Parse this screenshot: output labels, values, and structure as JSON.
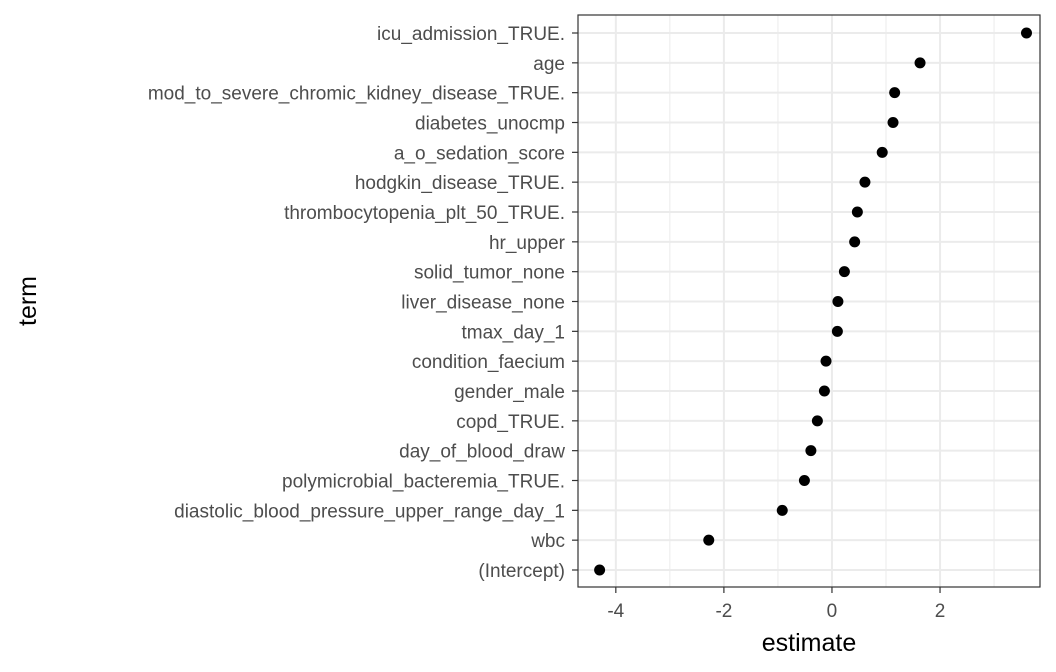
{
  "chart_data": {
    "type": "scatter",
    "xlabel": "estimate",
    "ylabel": "term",
    "xlim": [
      -4.7,
      3.85
    ],
    "x_ticks": [
      -4,
      -2,
      0,
      2
    ],
    "x_tick_labels": [
      "-4",
      "-2",
      "0",
      "2"
    ],
    "grid": true,
    "categories": [
      "(Intercept)",
      "wbc",
      "diastolic_blood_pressure_upper_range_day_1",
      "polymicrobial_bacteremia_TRUE.",
      "day_of_blood_draw",
      "copd_TRUE.",
      "gender_male",
      "condition_faecium",
      "tmax_day_1",
      "liver_disease_none",
      "solid_tumor_none",
      "hr_upper",
      "thrombocytopenia_plt_50_TRUE.",
      "hodgkin_disease_TRUE.",
      "a_o_sedation_score",
      "diabetes_unocmp",
      "mod_to_severe_chromic_kidney_disease_TRUE.",
      "age",
      "icu_admission_TRUE."
    ],
    "values": [
      -4.3,
      -2.28,
      -0.92,
      -0.51,
      -0.39,
      -0.27,
      -0.14,
      -0.11,
      0.1,
      0.11,
      0.23,
      0.42,
      0.47,
      0.61,
      0.93,
      1.13,
      1.16,
      1.63,
      3.6
    ],
    "colors": {
      "point": "#000000",
      "grid": "#ebebeb",
      "border": "#333333",
      "tick_text": "#4d4d4d"
    }
  }
}
